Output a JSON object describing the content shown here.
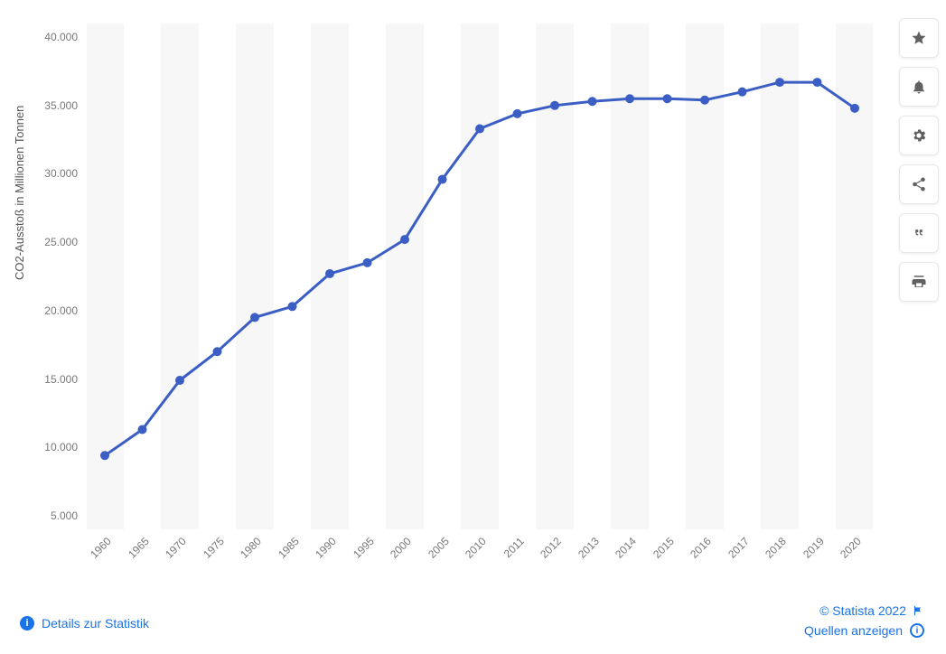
{
  "chart": {
    "type": "line",
    "y_axis_title": "CO2-Ausstoß in Millionen Tonnen",
    "x_labels": [
      "1960",
      "1965",
      "1970",
      "1975",
      "1980",
      "1985",
      "1990",
      "1995",
      "2000",
      "2005",
      "2010",
      "2011",
      "2012",
      "2013",
      "2014",
      "2015",
      "2016",
      "2017",
      "2018",
      "2019",
      "2020"
    ],
    "values": [
      9400,
      11300,
      14900,
      17000,
      19500,
      20300,
      22700,
      23500,
      25200,
      29600,
      33300,
      34400,
      35000,
      35300,
      35500,
      35500,
      35400,
      36000,
      36700,
      36700,
      34800
    ],
    "y_ticks": [
      5000,
      10000,
      15000,
      20000,
      25000,
      30000,
      35000,
      40000
    ],
    "y_tick_labels": [
      "5.000",
      "10.000",
      "15.000",
      "20.000",
      "25.000",
      "30.000",
      "35.000",
      "40.000"
    ],
    "ylim": [
      4000,
      41000
    ],
    "line_color": "#3b5ec4",
    "marker_color": "#3b5ec4",
    "marker_radius": 5,
    "band_color": "#f7f7f7",
    "background_color": "#ffffff",
    "label_color": "#777777",
    "label_fontsize": 12,
    "axis_title_fontsize": 13
  },
  "footer": {
    "details_label": "Details zur Statistik",
    "copyright": "© Statista 2022",
    "sources_label": "Quellen anzeigen"
  },
  "sidebar": {
    "star": "Favorit",
    "bell": "Benachrichtigung",
    "gear": "Einstellungen",
    "share": "Teilen",
    "quote": "Zitieren",
    "print": "Drucken"
  }
}
